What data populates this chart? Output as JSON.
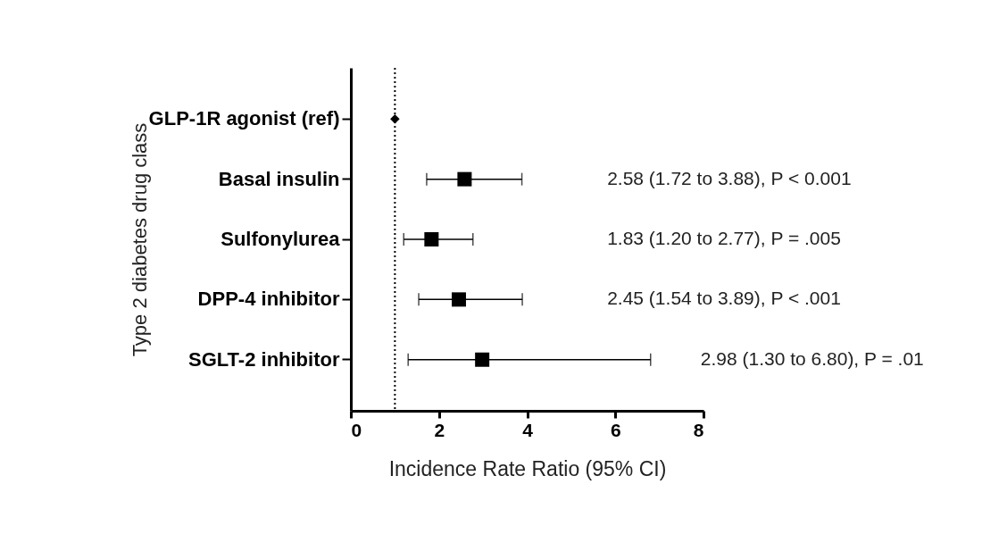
{
  "chart_data": {
    "type": "scatter",
    "orientation": "horizontal",
    "xlabel": "Incidence Rate Ratio (95% CI)",
    "ylabel": "Type 2 diabetes drug class",
    "categories": [
      "GLP-1R agonist (ref)",
      "Basal insulin",
      "Sulfonylurea",
      "DPP-4 inhibitor",
      "SGLT-2 inhibitor"
    ],
    "series": [
      {
        "color": "#000000",
        "marker": "diamond",
        "values": [
          1,
          null,
          null,
          null,
          null
        ]
      },
      {
        "color": "#000000",
        "marker": "square",
        "values": [
          null,
          2.58,
          1.83,
          2.45,
          2.98
        ],
        "errors": [
          null,
          [
            1.72,
            3.88
          ],
          [
            1.2,
            2.77
          ],
          [
            1.54,
            3.89
          ],
          [
            1.3,
            6.8
          ]
        ]
      }
    ],
    "annotations": [
      "2.58 (1.72 to 3.88), P < 0.001",
      "1.83 (1.20 to 2.77), P = .005",
      "2.45 (1.54 to 3.89), P < .001",
      "2.98 (1.30 to 6.80), P = .01"
    ],
    "xlim": [
      0,
      8
    ],
    "xticks": [
      0,
      2,
      4,
      6,
      8
    ],
    "grid": false,
    "ref_lines": [
      {
        "axis": "x",
        "value": 1,
        "line_style": "dotted",
        "color": "#000000"
      }
    ]
  }
}
